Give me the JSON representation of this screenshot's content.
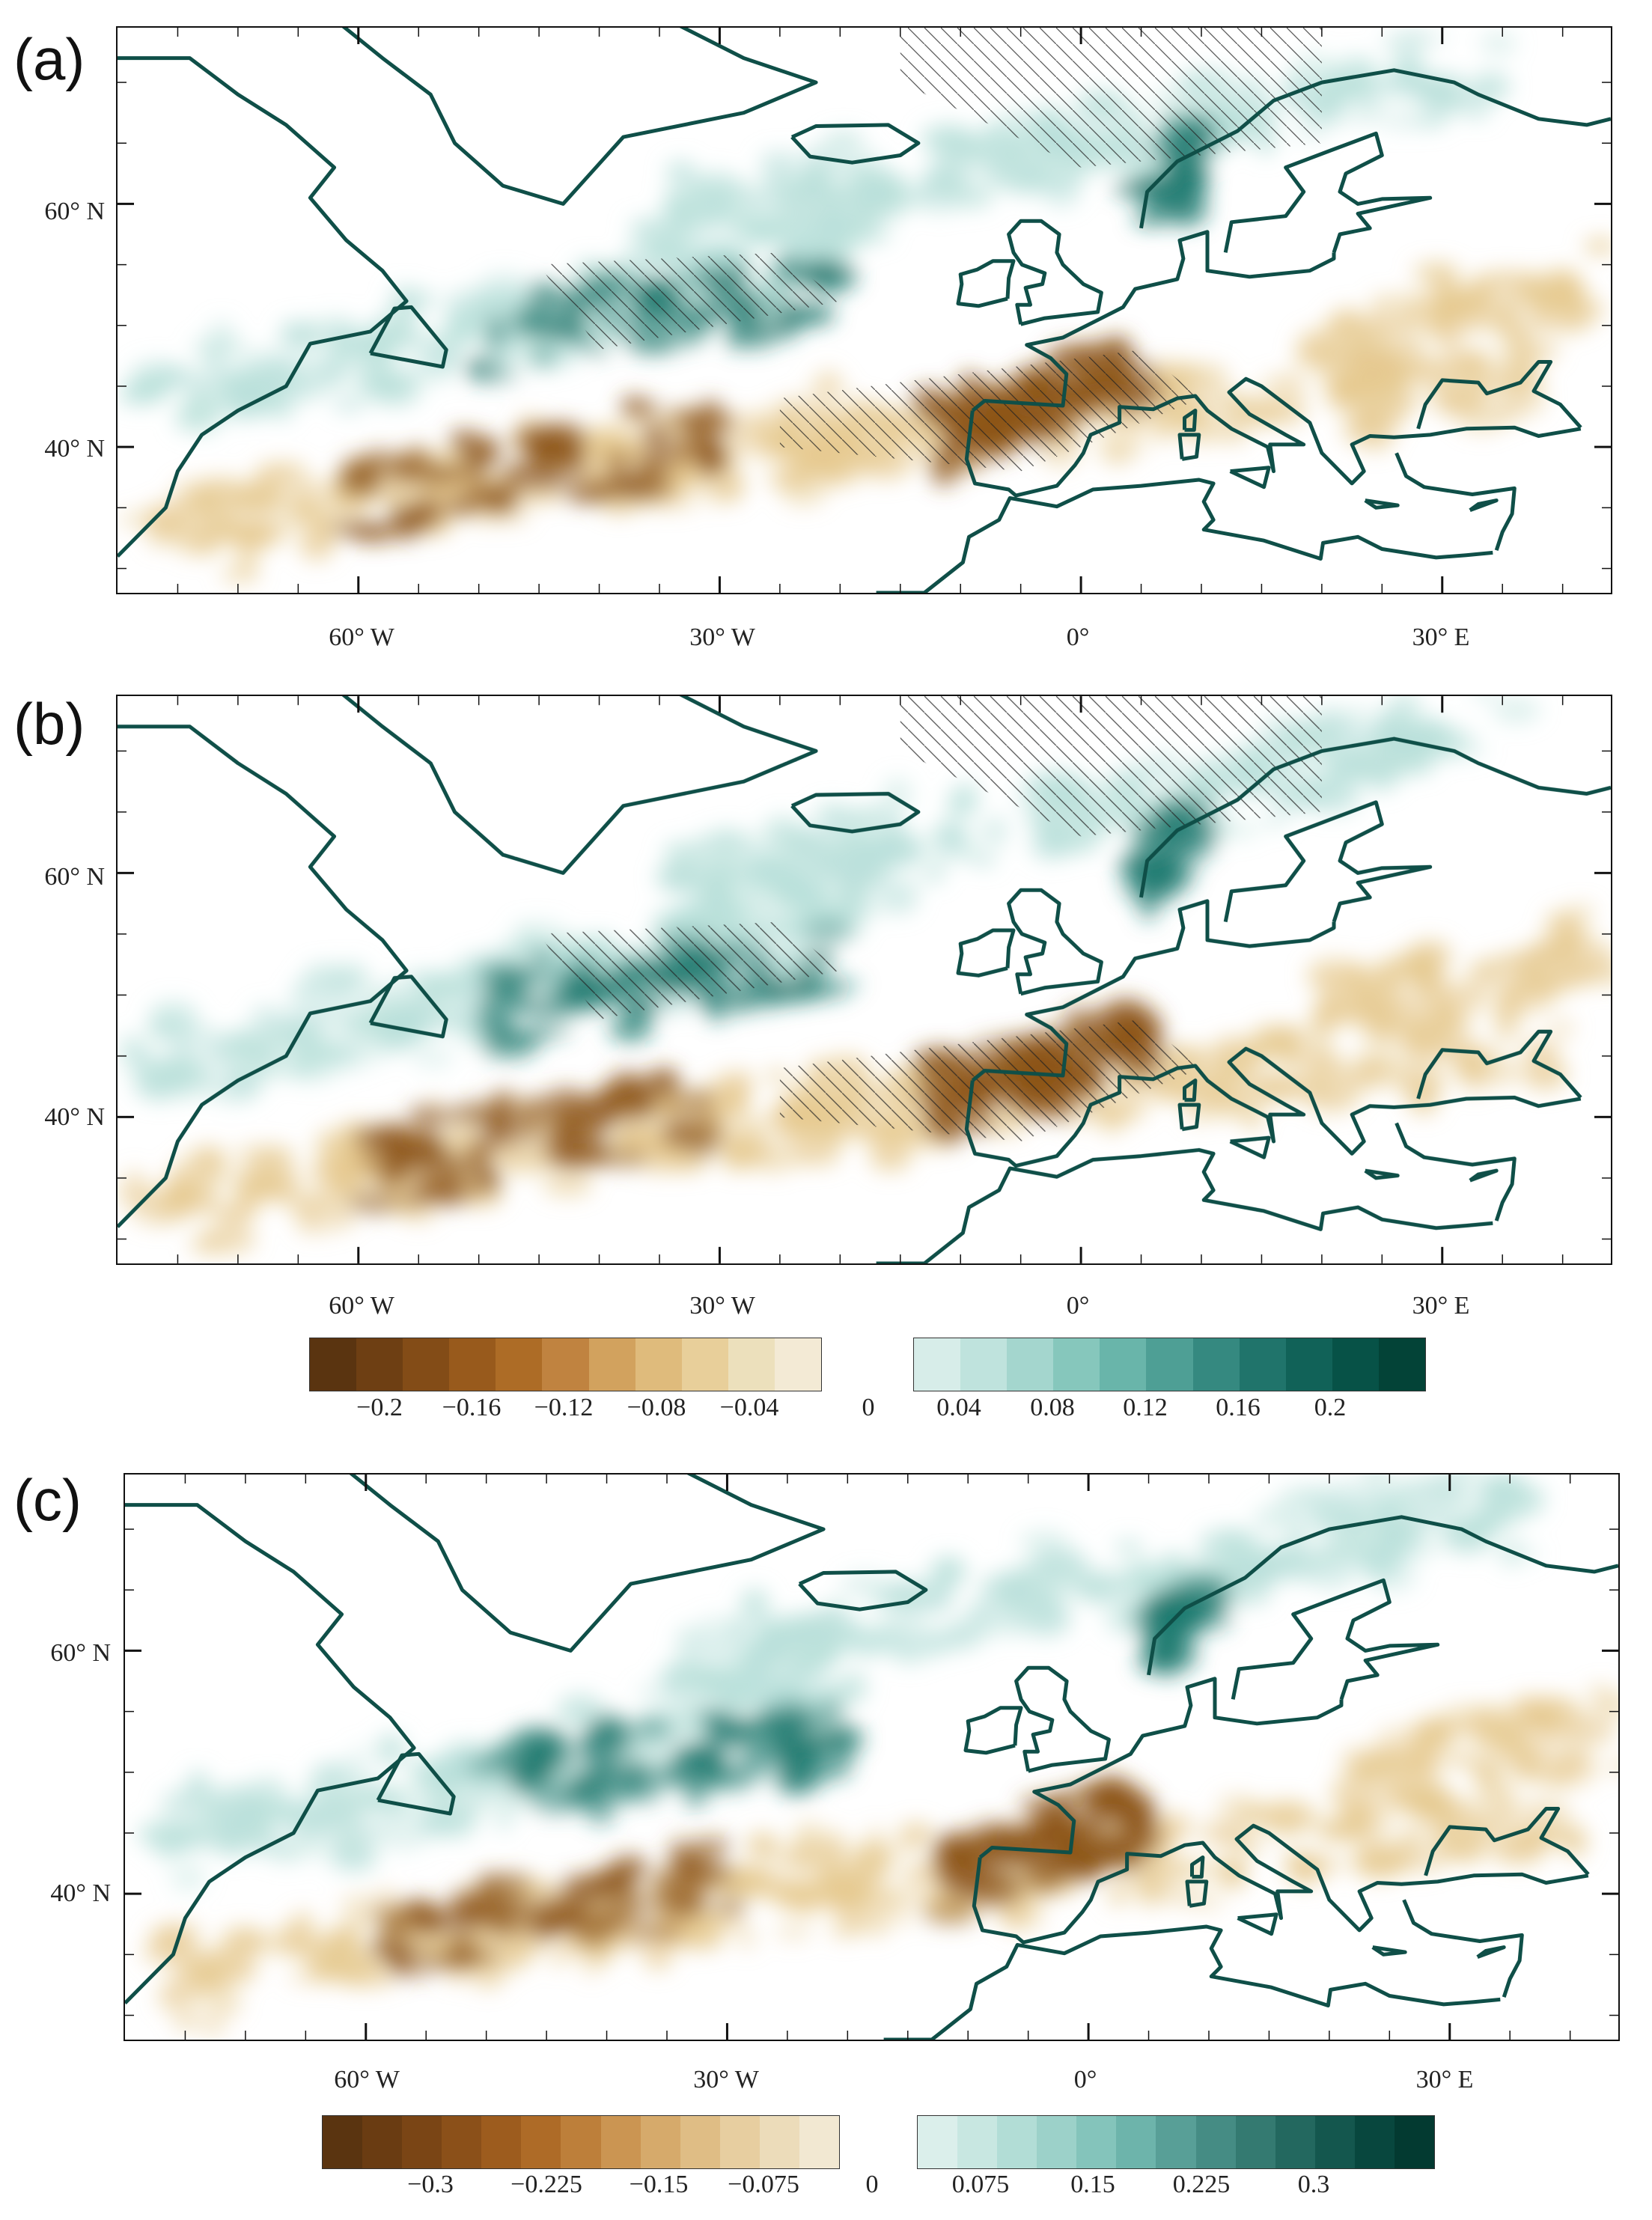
{
  "panels": [
    {
      "label": "(a)",
      "lat_labels": [
        "60° N",
        "40° N"
      ],
      "lon_labels": [
        "60° W",
        "30° W",
        "0°",
        "30° E"
      ],
      "hatched": true
    },
    {
      "label": "(b)",
      "lat_labels": [
        "60° N",
        "40° N"
      ],
      "lon_labels": [
        "60° W",
        "30° W",
        "0°",
        "30° E"
      ],
      "hatched": true
    },
    {
      "label": "(c)",
      "lat_labels": [
        "60° N",
        "40° N"
      ],
      "lon_labels": [
        "60° W",
        "30° W",
        "0°",
        "30° E"
      ],
      "hatched": false
    }
  ],
  "colorbars": [
    {
      "negative_colors": [
        "#5a3410",
        "#6e3f13",
        "#834c17",
        "#985a1c",
        "#ad6c26",
        "#c08340",
        "#d2a25e",
        "#dfbb7c",
        "#e8cf9a",
        "#ece0bc",
        "#f3ead5"
      ],
      "positive_colors": [
        "#d7ede9",
        "#bfe3dd",
        "#a4d6ce",
        "#86c7bc",
        "#69b5aa",
        "#4e9f95",
        "#358980",
        "#20746b",
        "#116258",
        "#075247",
        "#034337"
      ],
      "labels": [
        "−0.2",
        "−0.16",
        "−0.12",
        "−0.08",
        "−0.04",
        "0",
        "0.04",
        "0.08",
        "0.12",
        "0.16",
        "0.2"
      ]
    },
    {
      "negative_colors": [
        "#5a3410",
        "#6a3c12",
        "#7a4515",
        "#8b5019",
        "#9d5c1e",
        "#ae6b27",
        "#bd7f3a",
        "#cb9552",
        "#d6aa6b",
        "#dfbd85",
        "#e7cea0",
        "#ecdcba",
        "#f2e8d2"
      ],
      "positive_colors": [
        "#dbefeb",
        "#c8e7e1",
        "#b2ddd6",
        "#9cd1c9",
        "#84c4bb",
        "#6db4ab",
        "#589f97",
        "#458c84",
        "#347a71",
        "#23685f",
        "#14574e",
        "#08473e",
        "#033a31"
      ],
      "labels": [
        "−0.3",
        "−0.225",
        "−0.15",
        "−0.075",
        "0",
        "0.075",
        "0.15",
        "0.225",
        "0.3"
      ]
    }
  ],
  "colors": {
    "coastline": "#0f4f48",
    "brown_strong": "#8c5418",
    "brown_light": "#e6c98f",
    "teal_strong": "#1f7a70",
    "teal_light": "#b9e0da"
  }
}
